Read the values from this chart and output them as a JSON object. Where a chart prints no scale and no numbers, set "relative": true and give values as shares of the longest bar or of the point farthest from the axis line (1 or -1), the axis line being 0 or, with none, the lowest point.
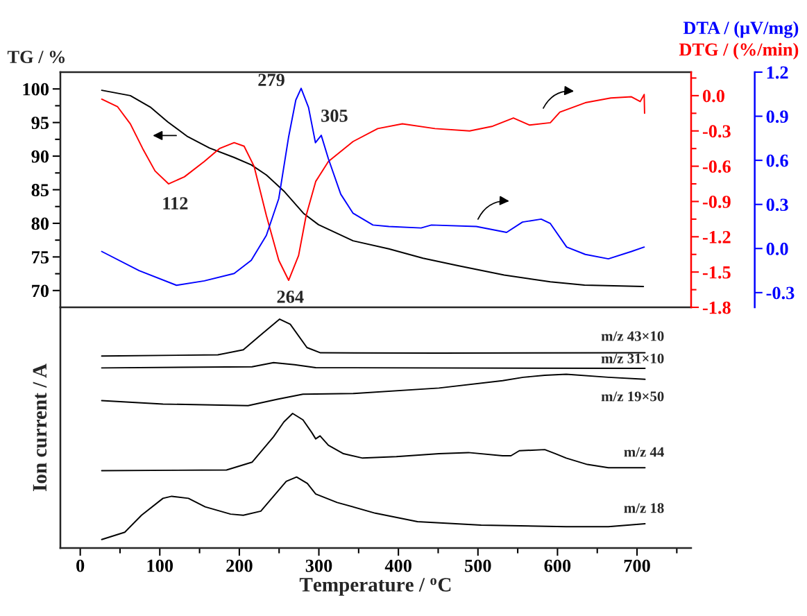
{
  "chart_data": [
    {
      "type": "line",
      "xlim": [
        -25,
        768
      ],
      "ylim": [
        67.5,
        102.5
      ],
      "yticks": [
        70,
        75,
        80,
        85,
        90,
        95,
        100,
        {
          "value": 72.5,
          "label": null
        },
        {
          "value": 77.5,
          "label": null
        },
        {
          "value": 82.5,
          "label": null
        },
        {
          "value": 87.5,
          "label": null
        },
        {
          "value": 92.5,
          "label": null
        },
        {
          "value": 97.5,
          "label": null
        }
      ],
      "y2lim": [
        -1.8,
        0.2
      ],
      "y2ticks": [
        {
          "value": -1.8,
          "label": "-1.8"
        },
        {
          "value": -1.5,
          "label": "-1.5"
        },
        {
          "value": -1.2,
          "label": "-1.2"
        },
        {
          "value": -0.9,
          "label": "-0.9"
        },
        {
          "value": -0.6,
          "label": "-0.6"
        },
        {
          "value": -0.3,
          "label": "-0.3"
        },
        {
          "value": 0.0,
          "label": "0.0"
        },
        {
          "value": -1.65,
          "label": null
        },
        {
          "value": -1.35,
          "label": null
        },
        {
          "value": -1.05,
          "label": null
        },
        {
          "value": -0.75,
          "label": null
        },
        {
          "value": -0.45,
          "label": null
        },
        {
          "value": -0.15,
          "label": null
        },
        {
          "value": 0.15,
          "label": null
        }
      ],
      "y3lim": [
        -0.4,
        1.2
      ],
      "y3ticks": [
        {
          "value": -0.3,
          "label": "-0.3"
        },
        {
          "value": 0.0,
          "label": "0.0"
        },
        0.3,
        0.6,
        0.9,
        1.2
      ],
      "ylabel": "TG / %",
      "y2label": "DTG / (%/min)",
      "y3label": "DTA / (μV/mg)",
      "tick_labels": "y",
      "series": [
        {
          "color": "#000000",
          "x": [
            27,
            63,
            88,
            110,
            135,
            162.5,
            193.5,
            215,
            234,
            256,
            280.6,
            299.5,
            343,
            388,
            431,
            475,
            533,
            591,
            634,
            708
          ],
          "values": [
            99.8,
            99.0,
            97.3,
            95.1,
            92.9,
            91.2,
            89.8,
            88.7,
            87.2,
            84.8,
            81.5,
            79.8,
            77.4,
            76.2,
            74.8,
            73.7,
            72.3,
            71.3,
            70.8,
            70.6
          ]
        },
        {
          "color": "#ff0000",
          "axis": "y2",
          "x": [
            27,
            47,
            63,
            78.5,
            94,
            111,
            131,
            156,
            175,
            193.5,
            206,
            218.5,
            234,
            249.6,
            262,
            274.5,
            284,
            296,
            312,
            343,
            374,
            405,
            446,
            489.5,
            518.5,
            544.6,
            565,
            591,
            603,
            635,
            667,
            693,
            704,
            709,
            709.5
          ],
          "values": [
            -0.03,
            -0.095,
            -0.24,
            -0.45,
            -0.64,
            -0.75,
            -0.69,
            -0.56,
            -0.45,
            -0.4,
            -0.43,
            -0.6,
            -1.02,
            -1.4,
            -1.57,
            -1.36,
            -1.02,
            -0.73,
            -0.56,
            -0.39,
            -0.28,
            -0.24,
            -0.28,
            -0.3,
            -0.26,
            -0.19,
            -0.25,
            -0.23,
            -0.14,
            -0.06,
            -0.02,
            -0.01,
            -0.05,
            0.01,
            -0.15
          ]
        },
        {
          "color": "#0000ff",
          "axis": "y3",
          "x": [
            27,
            74,
            121,
            156,
            193.5,
            215,
            234,
            249.6,
            262,
            271,
            277.7,
            287,
            295.7,
            303,
            312,
            327.5,
            343,
            368,
            388,
            428.5,
            441.5,
            498,
            536,
            556,
            579.5,
            591,
            611.5,
            635,
            664,
            693,
            709
          ],
          "values": [
            -0.02,
            -0.15,
            -0.25,
            -0.22,
            -0.17,
            -0.08,
            0.09,
            0.34,
            0.76,
            1.01,
            1.09,
            0.96,
            0.72,
            0.77,
            0.61,
            0.37,
            0.24,
            0.16,
            0.15,
            0.14,
            0.16,
            0.15,
            0.11,
            0.18,
            0.2,
            0.17,
            0.01,
            -0.04,
            -0.07,
            -0.02,
            0.01
          ]
        }
      ],
      "annotations": [
        {
          "text": "112",
          "x": 112,
          "y": 85.9
        },
        {
          "text": "264",
          "x": 264,
          "y": 71.55
        },
        {
          "text": "279",
          "x": 279,
          "y": 100.1
        },
        {
          "text": "305",
          "x": 305,
          "y": 93.2
        }
      ]
    },
    {
      "type": "line",
      "relative": true,
      "xlim": [
        -25,
        768
      ],
      "xticks": [
        0,
        100,
        200,
        300,
        400,
        500,
        600,
        700,
        {
          "value": 50,
          "label": null
        },
        {
          "value": 150,
          "label": null
        },
        {
          "value": 250,
          "label": null
        },
        {
          "value": 350,
          "label": null
        },
        {
          "value": 450,
          "label": null
        },
        {
          "value": 550,
          "label": null
        },
        {
          "value": 650,
          "label": null
        },
        {
          "value": 750,
          "label": null
        }
      ],
      "xlabel": "Temperature / $^{o}$C",
      "ylabel": "Ion current / A",
      "tick_labels": "x",
      "series": [
        {
          "name": "m/z 43×10",
          "color": "#000000",
          "x": [
            27,
            173,
            205,
            227,
            250.7,
            264,
            285,
            302,
            451,
            710
          ],
          "values": [
            0.839,
            0.844,
            0.866,
            0.931,
            1.0,
            0.978,
            0.876,
            0.853,
            0.852,
            0.853
          ]
        },
        {
          "name": "m/z 31×10",
          "color": "#000000",
          "x": [
            27,
            216,
            243,
            269.5,
            296,
            710
          ],
          "values": [
            0.787,
            0.792,
            0.81,
            0.801,
            0.788,
            0.785
          ]
        },
        {
          "name": "m/z 19×50",
          "color": "#000000",
          "x": [
            27,
            104,
            211,
            248,
            280,
            344,
            451,
            531,
            557,
            584,
            611,
            664,
            710
          ],
          "values": [
            0.644,
            0.629,
            0.622,
            0.65,
            0.672,
            0.675,
            0.699,
            0.731,
            0.746,
            0.755,
            0.759,
            0.746,
            0.737
          ]
        },
        {
          "name": "m/z 44",
          "color": "#000000",
          "x": [
            27,
            184,
            216,
            243,
            256,
            267,
            280,
            291,
            296,
            301.5,
            312,
            331,
            355,
            397.5,
            451,
            488,
            531,
            541.5,
            552,
            584,
            597.6,
            611,
            637.6,
            664,
            710
          ],
          "values": [
            0.338,
            0.341,
            0.375,
            0.486,
            0.551,
            0.588,
            0.56,
            0.505,
            0.477,
            0.49,
            0.449,
            0.412,
            0.393,
            0.399,
            0.412,
            0.417,
            0.403,
            0.403,
            0.425,
            0.43,
            0.412,
            0.393,
            0.365,
            0.351,
            0.351
          ]
        },
        {
          "name": "m/z 18",
          "color": "#000000",
          "x": [
            27,
            56,
            77,
            104,
            115,
            136,
            157,
            189,
            205,
            227,
            243,
            259,
            272,
            285.5,
            296,
            323,
            371,
            424,
            504,
            611,
            664,
            710
          ],
          "values": [
            0.037,
            0.069,
            0.143,
            0.217,
            0.226,
            0.217,
            0.18,
            0.148,
            0.143,
            0.161,
            0.226,
            0.291,
            0.31,
            0.282,
            0.236,
            0.199,
            0.152,
            0.115,
            0.1,
            0.093,
            0.093,
            0.106
          ]
        }
      ]
    }
  ]
}
